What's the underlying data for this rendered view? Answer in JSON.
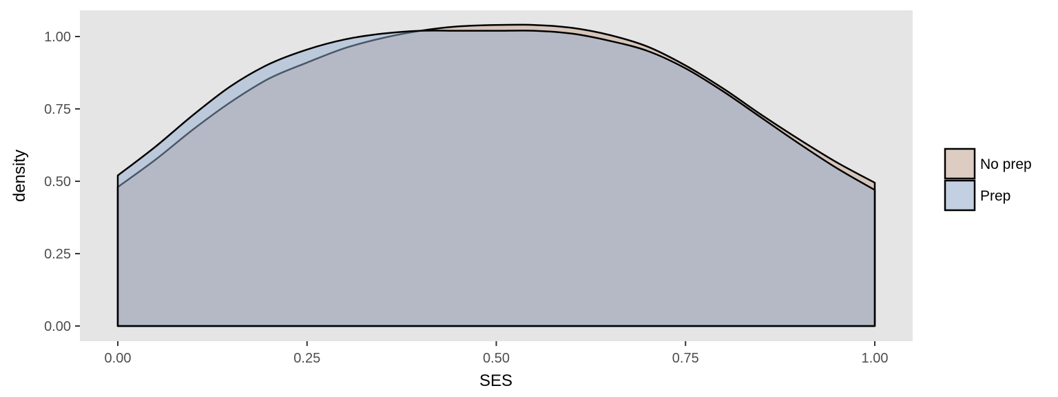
{
  "chart_data": {
    "type": "area",
    "subtype": "density",
    "title": "",
    "xlabel": "SES",
    "ylabel": "density",
    "xlim": [
      0,
      1
    ],
    "ylim": [
      0,
      1.05
    ],
    "x_ticks": [
      "0.00",
      "0.25",
      "0.50",
      "0.75",
      "1.00"
    ],
    "y_ticks": [
      "0.00",
      "0.25",
      "0.50",
      "0.75",
      "1.00"
    ],
    "grid": false,
    "legend_position": "right",
    "background": "#e5e5e5",
    "x": [
      0,
      0.05,
      0.1,
      0.15,
      0.2,
      0.25,
      0.3,
      0.35,
      0.4,
      0.45,
      0.5,
      0.55,
      0.6,
      0.65,
      0.7,
      0.75,
      0.8,
      0.85,
      0.9,
      0.95,
      1.0
    ],
    "series": [
      {
        "name": "No prep",
        "color": "#c8a690",
        "values": [
          0.48,
          0.575,
          0.68,
          0.775,
          0.855,
          0.91,
          0.96,
          0.995,
          1.02,
          1.035,
          1.04,
          1.04,
          1.03,
          1.005,
          0.965,
          0.9,
          0.82,
          0.73,
          0.645,
          0.565,
          0.495
        ]
      },
      {
        "name": "Prep",
        "color": "#94aecf",
        "values": [
          0.52,
          0.62,
          0.73,
          0.83,
          0.905,
          0.955,
          0.99,
          1.01,
          1.02,
          1.02,
          1.02,
          1.02,
          1.01,
          0.985,
          0.95,
          0.89,
          0.81,
          0.72,
          0.63,
          0.545,
          0.47
        ]
      }
    ]
  }
}
